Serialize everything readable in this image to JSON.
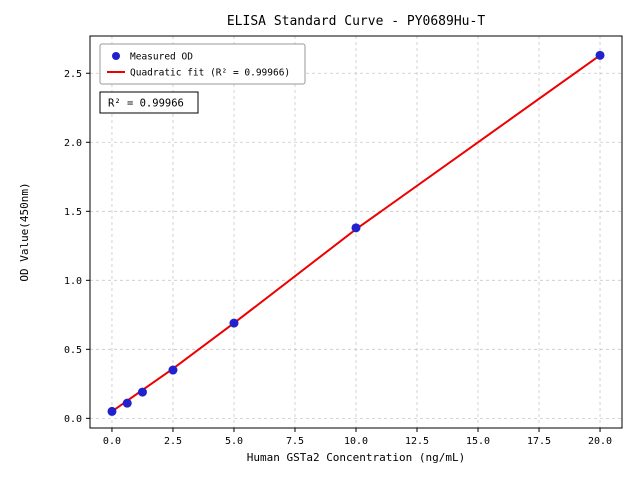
{
  "chart_data": {
    "type": "scatter",
    "title": "ELISA Standard Curve - PY0689Hu-T",
    "xlabel": "Human GSTa2 Concentration (ng/mL)",
    "ylabel": "OD Value(450nm)",
    "xlim": [
      -0.9,
      20.9
    ],
    "ylim": [
      -0.07,
      2.77
    ],
    "grid": true,
    "grid_color": "#c8c8c8",
    "xticks": [
      0,
      2.5,
      5,
      7.5,
      10,
      12.5,
      15,
      17.5,
      20
    ],
    "xtick_labels": [
      "0.0",
      "2.5",
      "5.0",
      "7.5",
      "10.0",
      "12.5",
      "15.0",
      "17.5",
      "20.0"
    ],
    "yticks": [
      0,
      0.5,
      1,
      1.5,
      2,
      2.5
    ],
    "ytick_labels": [
      "0.0",
      "0.5",
      "1.0",
      "1.5",
      "2.0",
      "2.5"
    ],
    "series": [
      {
        "name": "Measured OD",
        "type": "scatter",
        "color": "#2222cc",
        "x": [
          0,
          0.625,
          1.25,
          2.5,
          5,
          10,
          20
        ],
        "y": [
          0.05,
          0.11,
          0.19,
          0.35,
          0.69,
          1.38,
          2.63
        ]
      },
      {
        "name": "Quadratic fit (R² = 0.99966)",
        "type": "line",
        "color": "#ee0000",
        "x": [
          0,
          2.5,
          5,
          10,
          15,
          20
        ],
        "y": [
          0.05,
          0.36,
          0.69,
          1.37,
          2.0,
          2.63
        ]
      }
    ],
    "legend": {
      "position": "upper left"
    },
    "annotation": "R² = 0.99966",
    "r_squared": 0.99966
  }
}
